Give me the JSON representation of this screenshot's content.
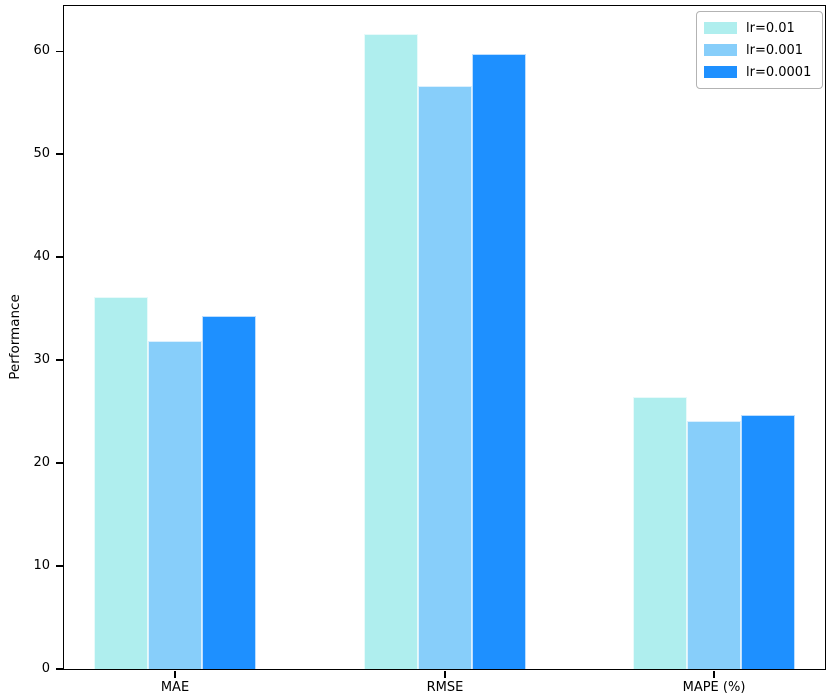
{
  "chart_data": {
    "type": "bar",
    "title": "",
    "xlabel": "",
    "ylabel": "Performance",
    "categories": [
      "MAE",
      "RMSE",
      "MAPE (%)"
    ],
    "series": [
      {
        "name": "lr=0.01",
        "color": "#AFEEEE",
        "values": [
          36.1,
          61.7,
          26.4
        ]
      },
      {
        "name": "lr=0.001",
        "color": "#87CEFA",
        "values": [
          31.9,
          56.6,
          24.1
        ]
      },
      {
        "name": "lr=0.0001",
        "color": "#1E90FF",
        "values": [
          34.3,
          59.7,
          24.7
        ]
      }
    ],
    "yticks": [
      0,
      10,
      20,
      30,
      40,
      50,
      60
    ],
    "ylim": [
      0,
      64.4
    ],
    "grid": false,
    "legend_position": "upper right",
    "axis_color": "#000000",
    "background_color": "#ffffff"
  }
}
